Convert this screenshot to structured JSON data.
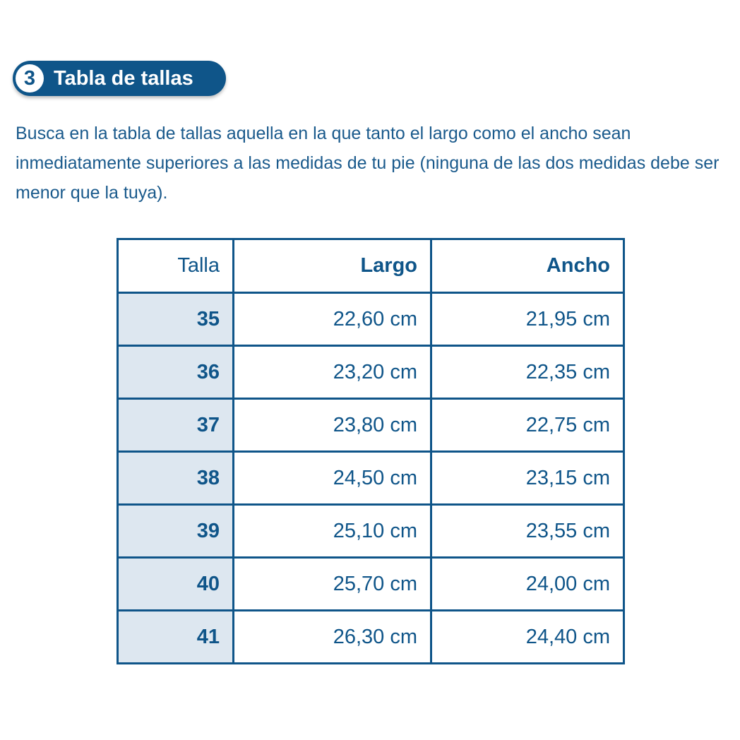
{
  "section": {
    "number": "3",
    "title": "Tabla de tallas"
  },
  "intro": "Busca en la tabla de tallas aquella en la que tanto el largo como el ancho sean inmediatamente superiores a las medidas de tu pie (ninguna de las dos medidas debe ser menor que la tuya).",
  "table": {
    "headers": [
      "Talla",
      "Largo",
      "Ancho"
    ],
    "rows": [
      [
        "35",
        "22,60 cm",
        "21,95 cm"
      ],
      [
        "36",
        "23,20 cm",
        "22,35 cm"
      ],
      [
        "37",
        "23,80 cm",
        "22,75 cm"
      ],
      [
        "38",
        "24,50 cm",
        "23,15 cm"
      ],
      [
        "39",
        "25,10 cm",
        "23,55 cm"
      ],
      [
        "40",
        "25,70 cm",
        "24,00 cm"
      ],
      [
        "41",
        "26,30 cm",
        "24,40 cm"
      ]
    ]
  },
  "colors": {
    "primary": "#0f5589",
    "size_cell_fill": "#dde7f0"
  }
}
